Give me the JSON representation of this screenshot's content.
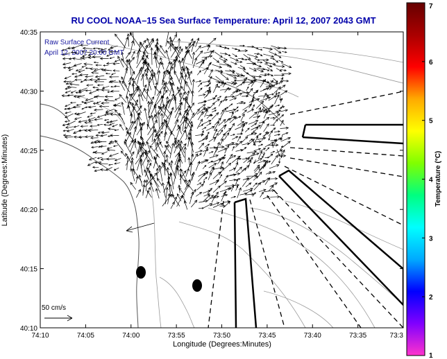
{
  "title": "RU COOL  NOAA–15  Sea Surface Temperature:  April 12, 2007 2043 GMT",
  "overlay": {
    "line1": "Raw Surface Current",
    "line2": "April 12, 2007 20:00 GMT"
  },
  "scale_label": "50 cm/s",
  "colors": {
    "title": "#0000aa",
    "overlay_text": "#1a1aa0",
    "axes": "#000000",
    "bathymetry": "#888888",
    "land": "#666666",
    "arrows": "#000000"
  },
  "chart_data": {
    "type": "vector-field",
    "title": "RU COOL  NOAA–15  Sea Surface Temperature:  April 12, 2007 2043 GMT",
    "xlabel": "Longitude (Degrees:Minutes)",
    "ylabel": "Latitude (Degrees:Minutes)",
    "x_ticks": [
      "74:10",
      "74:05",
      "74:00",
      "73:55",
      "73:50",
      "73:45",
      "73:40",
      "73:35",
      "73:3"
    ],
    "y_ticks": [
      "40:35",
      "40:30",
      "40:25",
      "40:20",
      "40:15",
      "40:10"
    ],
    "xlim": [
      -74.1667,
      -73.5
    ],
    "ylim": [
      40.1667,
      40.5833
    ],
    "colorbar": {
      "label": "Temperature (°C)",
      "ticks": [
        "1",
        "2",
        "3",
        "4",
        "5",
        "6",
        "7"
      ],
      "range": [
        1,
        7
      ],
      "colors": [
        "#ff33cc",
        "#8000ff",
        "#0000ff",
        "#00aaff",
        "#00ffff",
        "#00ff80",
        "#80ff00",
        "#ffff00",
        "#ffaa00",
        "#ff0000",
        "#aa0000",
        "#660000"
      ]
    },
    "scale_vector": {
      "label": "50 cm/s",
      "speed_cm_s": 50
    },
    "markers": [
      {
        "name": "dot-1",
        "lon": -73.9783,
        "lat": 40.245
      },
      {
        "name": "dot-2",
        "lon": -73.87,
        "lat": 40.225
      }
    ]
  }
}
